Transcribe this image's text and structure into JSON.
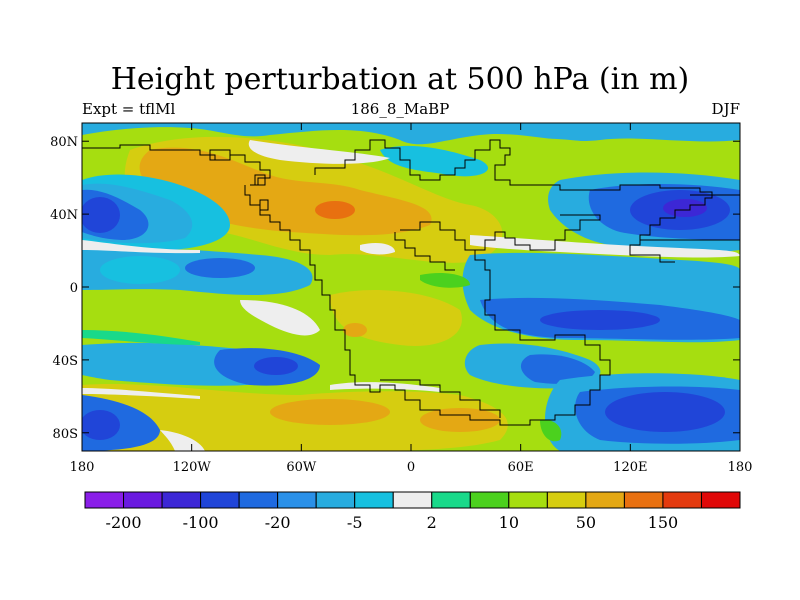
{
  "title": "Height perturbation at 500 hPa (in m)",
  "subtitle_left": "Expt = tflMl",
  "subtitle_center": "186_8_MaBP",
  "subtitle_right": "DJF",
  "chart_data": {
    "type": "heatmap",
    "title": "Height perturbation at 500 hPa (in m)",
    "x_ticks": [
      "180",
      "120W",
      "60W",
      "0",
      "60E",
      "120E",
      "180"
    ],
    "x_tick_values": [
      -180,
      -120,
      -60,
      0,
      60,
      120,
      180
    ],
    "y_ticks": [
      "80N",
      "40N",
      "0",
      "40S",
      "80S"
    ],
    "y_tick_values": [
      80,
      40,
      0,
      -40,
      -80
    ],
    "xlim": [
      -180,
      180
    ],
    "ylim": [
      -90,
      90
    ],
    "colorbar": {
      "levels": [
        -200,
        -150,
        -100,
        -50,
        -20,
        -10,
        -5,
        -2,
        2,
        5,
        10,
        20,
        50,
        100,
        150,
        200
      ],
      "labels": [
        "-200",
        "-100",
        "-20",
        "-5",
        "2",
        "10",
        "50",
        "150"
      ],
      "colors": [
        "#8a1ee8",
        "#6a1ae0",
        "#3c27d6",
        "#2045d8",
        "#1f6ae0",
        "#2a90e8",
        "#28acdf",
        "#17c0e0",
        "#eeeeee",
        "#19d98a",
        "#4bd11e",
        "#a6de10",
        "#d6cd10",
        "#e4a814",
        "#e87010",
        "#e43a0e",
        "#e00808"
      ]
    }
  }
}
